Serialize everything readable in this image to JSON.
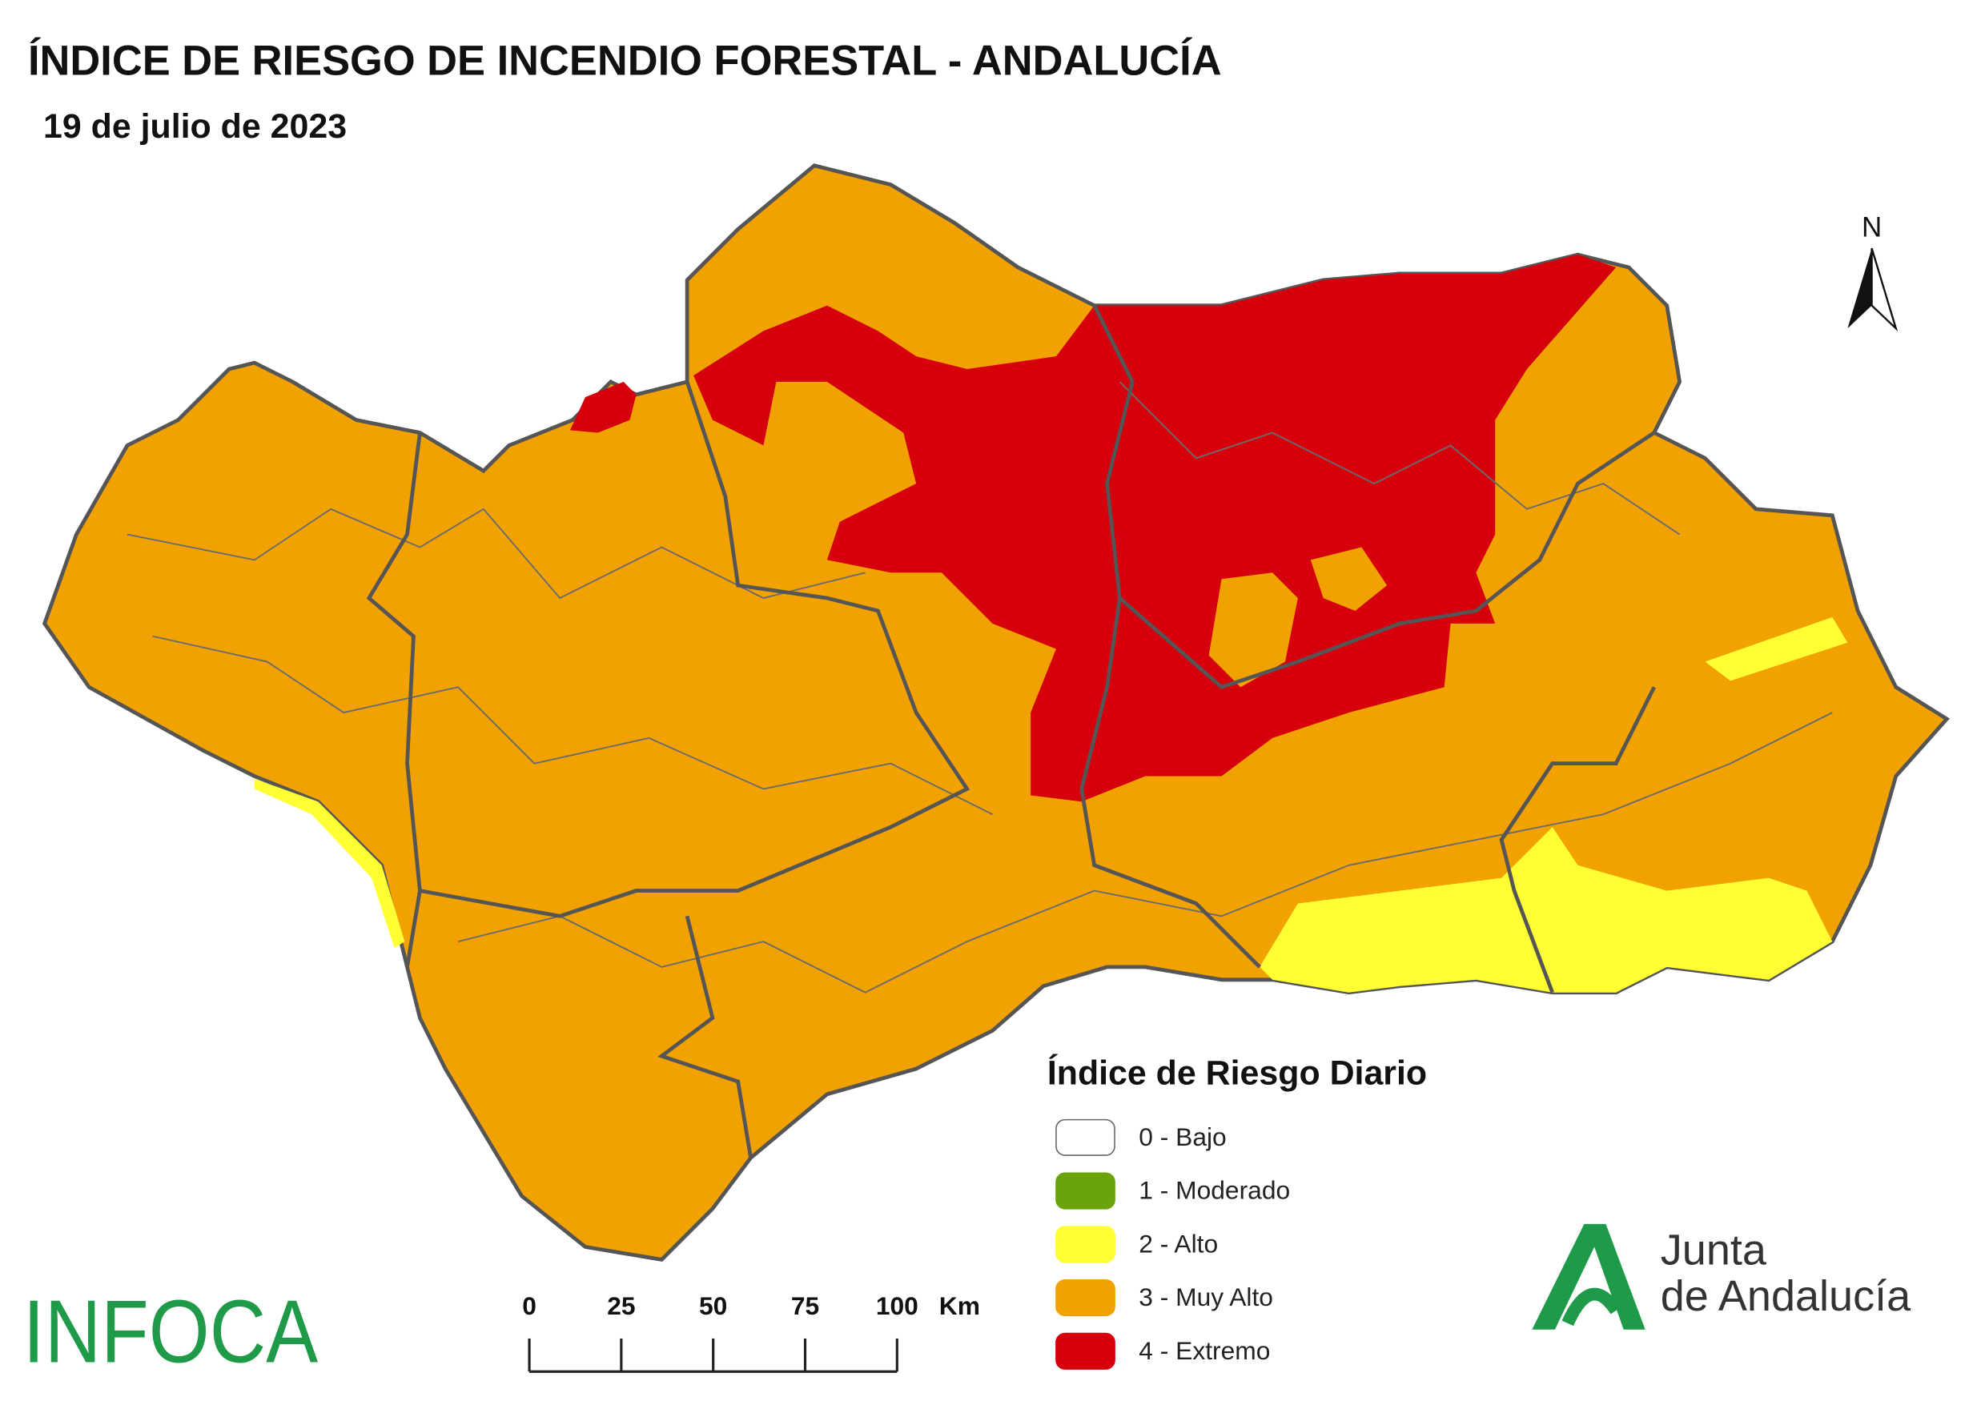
{
  "header": {
    "title": "ÍNDICE DE RIESGO DE INCENDIO FORESTAL - ANDALUCÍA",
    "subtitle": "19 de julio de 2023"
  },
  "north": "N",
  "legend": {
    "title": "Índice de Riesgo Diario",
    "items": [
      {
        "label": "0 - Bajo",
        "color": "#ffffff"
      },
      {
        "label": "1 - Moderado",
        "color": "#6aa40a"
      },
      {
        "label": "2 - Alto",
        "color": "#ffff33"
      },
      {
        "label": "3 - Muy Alto",
        "color": "#f2a200"
      },
      {
        "label": "4 - Extremo",
        "color": "#d6000c"
      }
    ]
  },
  "scale_bar": {
    "ticks": [
      0,
      25,
      50,
      75,
      100
    ],
    "unit": "Km"
  },
  "logos": {
    "infoca": "INFOCA",
    "junta": [
      "Junta",
      "de Andalucía"
    ]
  }
}
